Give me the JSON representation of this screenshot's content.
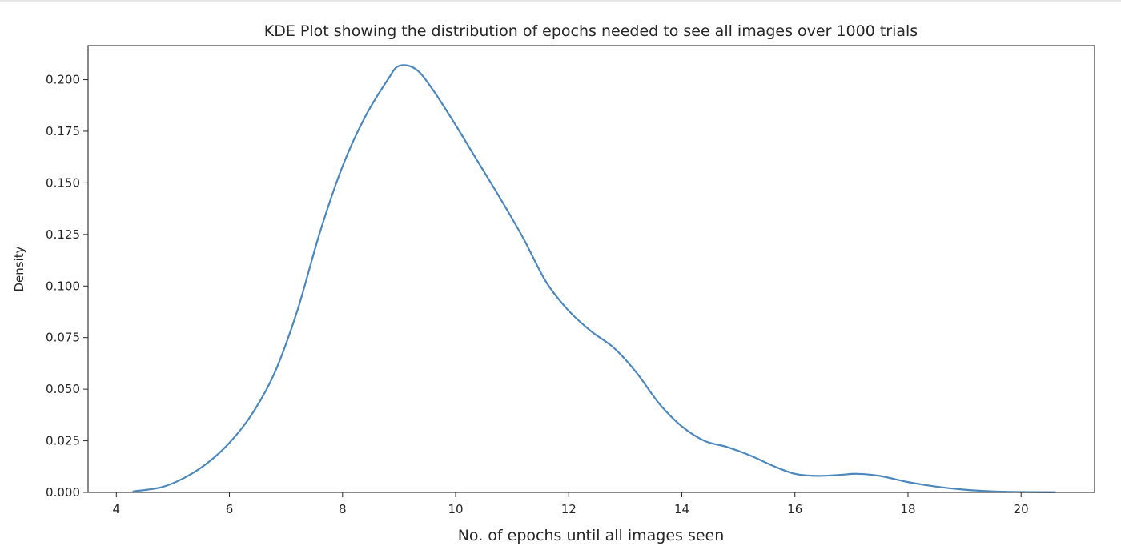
{
  "chart_data": {
    "type": "line",
    "title": "KDE Plot showing the distribution of epochs needed to see all images over 1000 trials",
    "xlabel": "No. of epochs until all images seen",
    "ylabel": "Density",
    "xlim": [
      3.5,
      21.3
    ],
    "ylim": [
      0.0,
      0.2165
    ],
    "x_ticks": [
      4,
      6,
      8,
      10,
      12,
      14,
      16,
      18,
      20
    ],
    "x_tick_labels": [
      "4",
      "6",
      "8",
      "10",
      "12",
      "14",
      "16",
      "18",
      "20"
    ],
    "y_ticks": [
      0.0,
      0.025,
      0.05,
      0.075,
      0.1,
      0.125,
      0.15,
      0.175,
      0.2
    ],
    "y_tick_labels": [
      "0.000",
      "0.025",
      "0.050",
      "0.075",
      "0.100",
      "0.125",
      "0.150",
      "0.175",
      "0.200"
    ],
    "grid": false,
    "line_color": "#4c88bc",
    "series": [
      {
        "x": [
          4.3,
          4.8,
          5.2,
          5.6,
          6.0,
          6.4,
          6.8,
          7.2,
          7.6,
          8.0,
          8.4,
          8.8,
          9.0,
          9.3,
          9.6,
          10.0,
          10.4,
          10.8,
          11.2,
          11.6,
          12.0,
          12.4,
          12.8,
          13.2,
          13.6,
          14.0,
          14.4,
          14.8,
          15.2,
          15.6,
          16.0,
          16.4,
          16.8,
          17.1,
          17.5,
          18.0,
          18.5,
          19.0,
          19.5,
          20.0,
          20.6
        ],
        "y": [
          0.0005,
          0.0025,
          0.007,
          0.014,
          0.024,
          0.038,
          0.058,
          0.088,
          0.126,
          0.158,
          0.182,
          0.2,
          0.2067,
          0.205,
          0.195,
          0.178,
          0.16,
          0.142,
          0.123,
          0.102,
          0.088,
          0.078,
          0.07,
          0.058,
          0.043,
          0.032,
          0.025,
          0.022,
          0.018,
          0.013,
          0.009,
          0.008,
          0.0085,
          0.009,
          0.008,
          0.005,
          0.0028,
          0.0013,
          0.0005,
          0.0002,
          0.0001
        ]
      }
    ]
  }
}
